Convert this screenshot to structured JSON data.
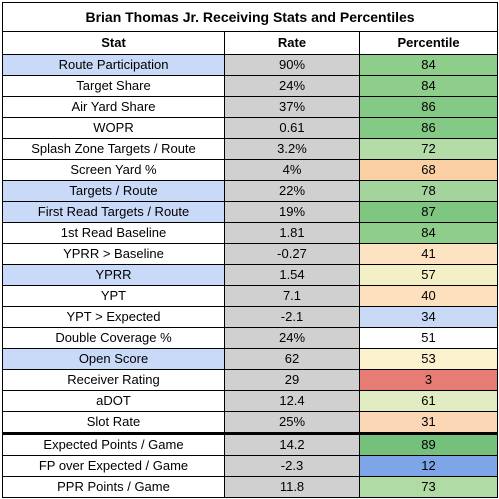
{
  "title": "Brian Thomas Jr. Receiving Stats and Percentiles",
  "headers": {
    "stat": "Stat",
    "rate": "Rate",
    "percentile": "Percentile"
  },
  "colors": {
    "highlight_stat": "#c9daf8",
    "rate_gray": "#d0d0d0",
    "white": "#ffffff"
  },
  "rows": [
    {
      "stat": "Route Participation",
      "rate": "90%",
      "percentile": "84",
      "highlight": true,
      "pct_color": "#8fcd8b"
    },
    {
      "stat": "Target Share",
      "rate": "24%",
      "percentile": "84",
      "highlight": false,
      "pct_color": "#8fcd8b"
    },
    {
      "stat": "Air Yard Share",
      "rate": "37%",
      "percentile": "86",
      "highlight": false,
      "pct_color": "#84c985"
    },
    {
      "stat": "WOPR",
      "rate": "0.61",
      "percentile": "86",
      "highlight": false,
      "pct_color": "#84c985"
    },
    {
      "stat": "Splash Zone Targets / Route",
      "rate": "3.2%",
      "percentile": "72",
      "highlight": false,
      "pct_color": "#b4dca7"
    },
    {
      "stat": "Screen Yard %",
      "rate": "4%",
      "percentile": "68",
      "highlight": false,
      "pct_color": "#fcd0a5"
    },
    {
      "stat": "Targets / Route",
      "rate": "22%",
      "percentile": "78",
      "highlight": true,
      "pct_color": "#a3d49b"
    },
    {
      "stat": "First Read Targets / Route",
      "rate": "19%",
      "percentile": "87",
      "highlight": true,
      "pct_color": "#7fc681"
    },
    {
      "stat": "1st Read Baseline",
      "rate": "1.81",
      "percentile": "84",
      "highlight": false,
      "pct_color": "#8fcd8b"
    },
    {
      "stat": "YPRR > Baseline",
      "rate": "-0.27",
      "percentile": "41",
      "highlight": false,
      "pct_color": "#fde3c2"
    },
    {
      "stat": "YPRR",
      "rate": "1.54",
      "percentile": "57",
      "highlight": true,
      "pct_color": "#f3efc6"
    },
    {
      "stat": "YPT",
      "rate": "7.1",
      "percentile": "40",
      "highlight": false,
      "pct_color": "#fde1bf"
    },
    {
      "stat": "YPT > Expected",
      "rate": "-2.1",
      "percentile": "34",
      "highlight": false,
      "pct_color": "#c7d9f5"
    },
    {
      "stat": "Double Coverage %",
      "rate": "24%",
      "percentile": "51",
      "highlight": false,
      "pct_color": "#ffffff"
    },
    {
      "stat": "Open Score",
      "rate": "62",
      "percentile": "53",
      "highlight": true,
      "pct_color": "#fbf1cd"
    },
    {
      "stat": "Receiver Rating",
      "rate": "29",
      "percentile": "3",
      "highlight": false,
      "pct_color": "#e67c73"
    },
    {
      "stat": "aDOT",
      "rate": "12.4",
      "percentile": "61",
      "highlight": false,
      "pct_color": "#e2ecc2"
    },
    {
      "stat": "Slot Rate",
      "rate": "25%",
      "percentile": "31",
      "highlight": false,
      "pct_color": "#fbd7b6"
    },
    {
      "stat": "Expected Points / Game",
      "rate": "14.2",
      "percentile": "89",
      "highlight": false,
      "pct_color": "#75c17b",
      "section_break": true
    },
    {
      "stat": "FP over Expected / Game",
      "rate": "-2.3",
      "percentile": "12",
      "highlight": false,
      "pct_color": "#7ea5e8"
    },
    {
      "stat": "PPR Points / Game",
      "rate": "11.8",
      "percentile": "73",
      "highlight": false,
      "pct_color": "#b1dba4"
    }
  ]
}
